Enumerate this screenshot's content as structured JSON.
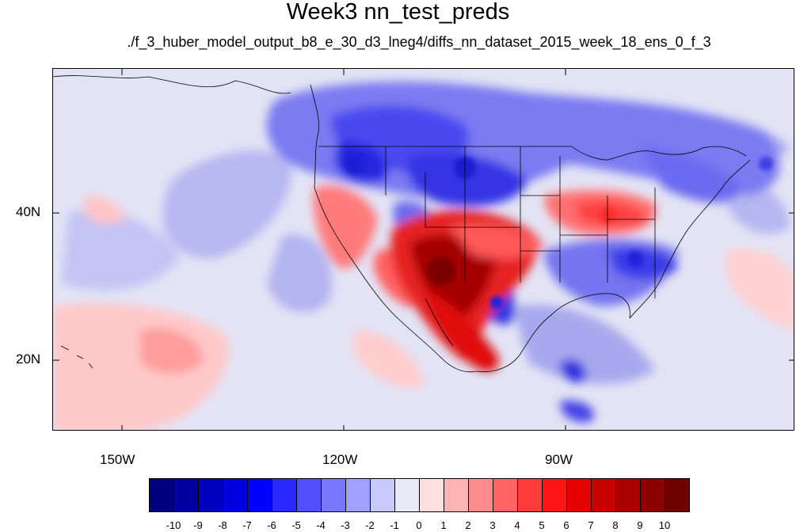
{
  "title": "Week3 nn_test_preds",
  "subtitle": "./f_3_huber_model_output_b8_e_30_d3_lneg4/diffs_nn_dataset_2015_week_18_ens_0_f_3",
  "map": {
    "lat_labels": [
      "40N",
      "20N"
    ],
    "lon_labels": [
      "150W",
      "120W",
      "90W"
    ],
    "background_color": "#e3e3f5",
    "coast_color": "#000000"
  },
  "colorbar": {
    "labels": [
      "-10",
      "-9",
      "-8",
      "-7",
      "-6",
      "-5",
      "-4",
      "-3",
      "-2",
      "-1",
      "0",
      "1",
      "2",
      "3",
      "4",
      "5",
      "6",
      "7",
      "8",
      "9",
      "10"
    ],
    "colors": [
      "#00007f",
      "#00009f",
      "#0000bf",
      "#0000df",
      "#0000ff",
      "#2828ff",
      "#5050ff",
      "#7878ff",
      "#a0a0ff",
      "#c8c8ff",
      "#e8e8f8",
      "#ffe0e0",
      "#ffb4b4",
      "#ff8c8c",
      "#ff6464",
      "#ff3c3c",
      "#ff1414",
      "#e60000",
      "#c80000",
      "#aa0000",
      "#8c0000",
      "#6e0000"
    ]
  }
}
